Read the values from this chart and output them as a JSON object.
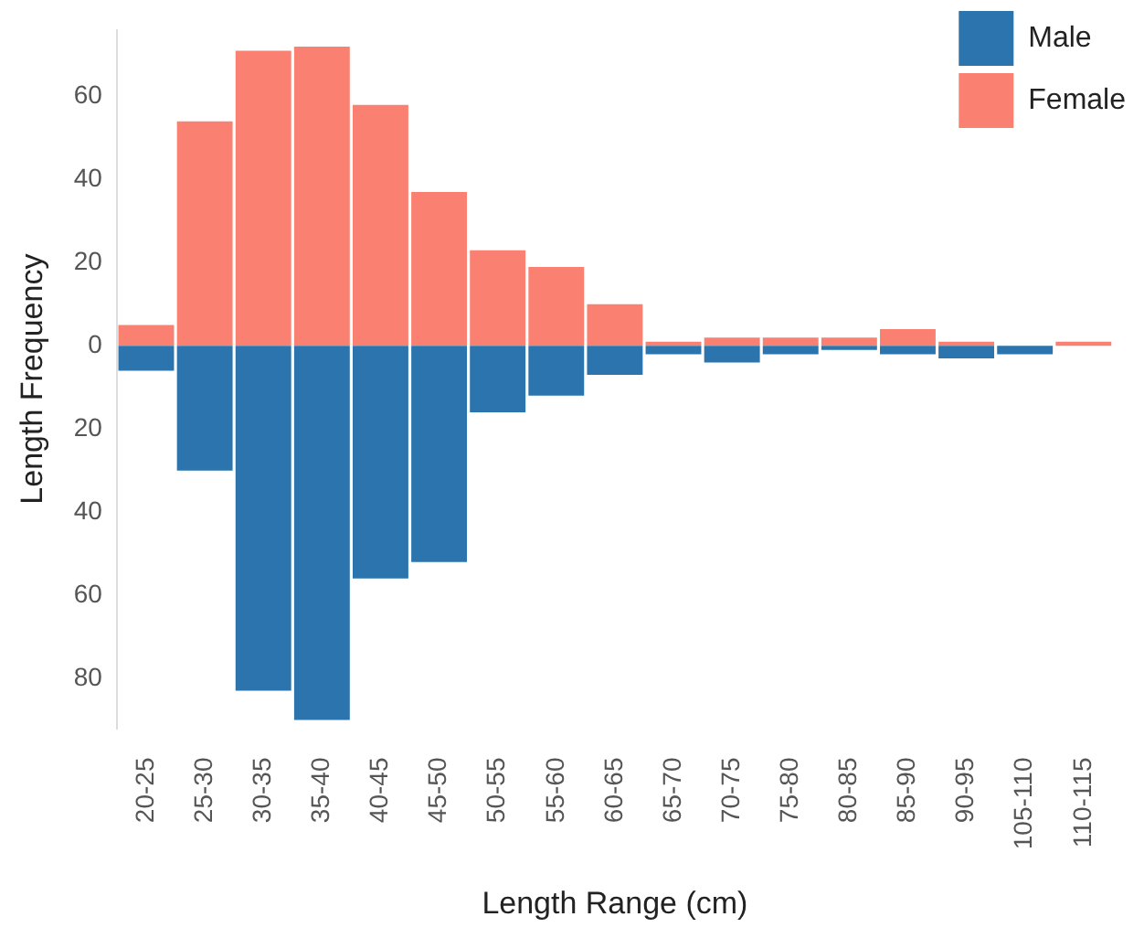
{
  "chart_data": {
    "type": "bar",
    "stacked": true,
    "xlabel": "Length Range (cm)",
    "ylabel": "Length Frequency",
    "categories": [
      "20-25",
      "25-30",
      "30-35",
      "35-40",
      "40-45",
      "45-50",
      "50-55",
      "55-60",
      "60-65",
      "65-70",
      "70-75",
      "75-80",
      "80-85",
      "85-90",
      "90-95",
      "105-110",
      "110-115"
    ],
    "series": [
      {
        "name": "Male",
        "color": "#2b74ad",
        "values": [
          -6,
          -30,
          -83,
          -90,
          -56,
          -52,
          -16,
          -12,
          -7,
          -2,
          -4,
          -2,
          -1,
          -2,
          -3,
          -2,
          0
        ]
      },
      {
        "name": "Female",
        "color": "#fa8072",
        "values": [
          5,
          54,
          71,
          72,
          58,
          37,
          23,
          19,
          10,
          1,
          2,
          2,
          2,
          4,
          1,
          0,
          1
        ]
      }
    ],
    "yticks": [
      {
        "value": -80,
        "label": "80"
      },
      {
        "value": -60,
        "label": "60"
      },
      {
        "value": -40,
        "label": "40"
      },
      {
        "value": -20,
        "label": "20"
      },
      0,
      20,
      40,
      60
    ],
    "ylim": [
      -92,
      76
    ],
    "grid": false,
    "legend": "top right"
  }
}
